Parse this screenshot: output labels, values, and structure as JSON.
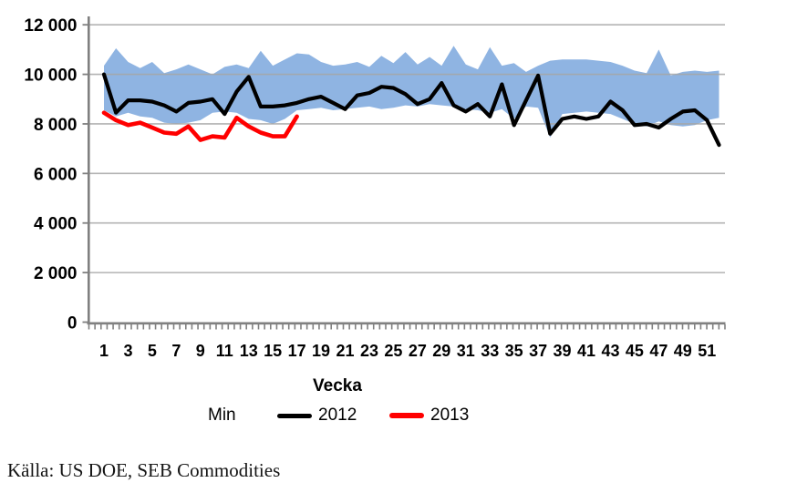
{
  "source_note": "Källa: US DOE, SEB Commodities",
  "colors": {
    "band": "#8FB4E2",
    "line_2012": "#000000",
    "line_2013": "#FF0000",
    "gridline": "#A6A6A6",
    "axis": "#808080",
    "text": "#000000",
    "background": "#FFFFFF"
  },
  "chart_data": {
    "type": "area+line",
    "title": "",
    "xlabel": "Vecka",
    "ylabel": "",
    "ylim": [
      0,
      12000
    ],
    "x_range_weeks": [
      1,
      52
    ],
    "grid": "horizontal",
    "legend_position": "bottom",
    "legend": [
      "Min",
      "2012",
      "2013"
    ],
    "y_ticks": [
      {
        "v": 0,
        "label": "0"
      },
      {
        "v": 2000,
        "label": "2 000"
      },
      {
        "v": 4000,
        "label": "4 000"
      },
      {
        "v": 6000,
        "label": "6 000"
      },
      {
        "v": 8000,
        "label": "8 000"
      },
      {
        "v": 10000,
        "label": "10 000"
      },
      {
        "v": 12000,
        "label": "12 000"
      }
    ],
    "x_tick_labels": [
      "1",
      "3",
      "5",
      "7",
      "9",
      "11",
      "13",
      "15",
      "17",
      "19",
      "21",
      "23",
      "25",
      "27",
      "29",
      "31",
      "33",
      "35",
      "37",
      "39",
      "41",
      "43",
      "45",
      "47",
      "49",
      "51"
    ],
    "series": [
      {
        "name": "",
        "role": "band_upper",
        "values": [
          10350,
          11050,
          10500,
          10250,
          10500,
          10050,
          10200,
          10400,
          10200,
          10000,
          10300,
          10400,
          10250,
          10950,
          10350,
          10600,
          10850,
          10800,
          10500,
          10350,
          10400,
          10500,
          10300,
          10750,
          10450,
          10900,
          10400,
          10700,
          10350,
          11150,
          10400,
          10200,
          11100,
          10350,
          10450,
          10100,
          10350,
          10550,
          10600,
          10600,
          10600,
          10550,
          10500,
          10350,
          10150,
          10050,
          11000,
          9950,
          10100,
          10150,
          10100,
          10150
        ]
      },
      {
        "name": "Min",
        "role": "band_lower",
        "values": [
          8550,
          8300,
          8450,
          8300,
          8250,
          8050,
          8000,
          8050,
          8150,
          8450,
          8500,
          8450,
          8200,
          8150,
          8000,
          8200,
          8550,
          8600,
          8650,
          8550,
          8600,
          8650,
          8700,
          8600,
          8650,
          8750,
          8700,
          8800,
          8750,
          8700,
          8600,
          8550,
          8450,
          8600,
          8200,
          8700,
          8650,
          7450,
          8400,
          8450,
          8500,
          8450,
          8400,
          8200,
          8000,
          7900,
          8100,
          7950,
          7900,
          7950,
          8150,
          8250
        ]
      },
      {
        "name": "2012",
        "role": "line_2012",
        "values": [
          10000,
          8450,
          8950,
          8950,
          8900,
          8750,
          8500,
          8850,
          8900,
          9000,
          8400,
          9300,
          9900,
          8700,
          8700,
          8750,
          8850,
          9000,
          9100,
          8850,
          8600,
          9150,
          9250,
          9500,
          9450,
          9200,
          8800,
          9000,
          9650,
          8750,
          8500,
          8800,
          8300,
          9600,
          7950,
          8950,
          9950,
          7600,
          8200,
          8300,
          8200,
          8300,
          8900,
          8550,
          7950,
          8000,
          7850,
          8200,
          8500,
          8550,
          8150,
          7150
        ]
      },
      {
        "name": "2013",
        "role": "line_2013",
        "values": [
          8450,
          8150,
          7950,
          8050,
          7850,
          7650,
          7600,
          7900,
          7350,
          7500,
          7450,
          8250,
          7900,
          7650,
          7500,
          7500,
          8300
        ]
      }
    ]
  }
}
